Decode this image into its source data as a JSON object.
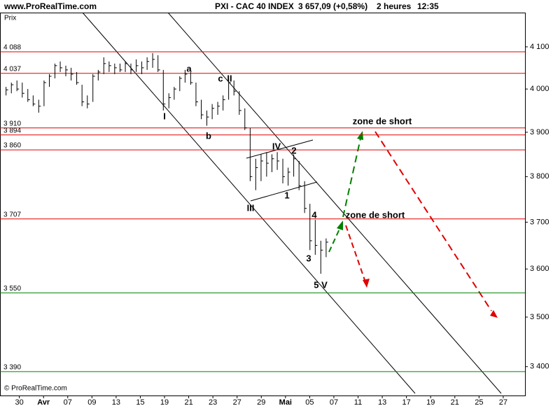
{
  "chart_data": {
    "type": "ohlc",
    "site": "www.ProRealTime.com",
    "title": "PXI - CAC 40 INDEX",
    "last_price": "3 657,09 (+0,58%)",
    "timeframe": "2 heures",
    "time": "12:35",
    "y_label": "Prix",
    "footer": "© ProRealTime.com",
    "log_y": true,
    "color": "#000000",
    "ylim": [
      3343,
      4183
    ],
    "yticks": [
      {
        "value": 4100,
        "label": "4 100"
      },
      {
        "value": 4000,
        "label": "4 000"
      },
      {
        "value": 3900,
        "label": "3 900"
      },
      {
        "value": 3800,
        "label": "3 800"
      },
      {
        "value": 3700,
        "label": "3 700"
      },
      {
        "value": 3600,
        "label": "3 600"
      },
      {
        "value": 3500,
        "label": "3 500"
      },
      {
        "value": 3400,
        "label": "3 400"
      }
    ],
    "xlim": [
      -0.8,
      20.9
    ],
    "xticks": [
      {
        "value": 0,
        "label": "30"
      },
      {
        "value": 1,
        "label": "Avr"
      },
      {
        "value": 2,
        "label": "07"
      },
      {
        "value": 3,
        "label": "09"
      },
      {
        "value": 4,
        "label": "13"
      },
      {
        "value": 5,
        "label": "15"
      },
      {
        "value": 6,
        "label": "19"
      },
      {
        "value": 7,
        "label": "21"
      },
      {
        "value": 8,
        "label": "23"
      },
      {
        "value": 9,
        "label": "27"
      },
      {
        "value": 10,
        "label": "29"
      },
      {
        "value": 11,
        "label": "Mai"
      },
      {
        "value": 12,
        "label": "05"
      },
      {
        "value": 13,
        "label": "07"
      },
      {
        "value": 14,
        "label": "11"
      },
      {
        "value": 15,
        "label": "13"
      },
      {
        "value": 16,
        "label": "17"
      },
      {
        "value": 17,
        "label": "19"
      },
      {
        "value": 18,
        "label": "21"
      },
      {
        "value": 19,
        "label": "25"
      },
      {
        "value": 20,
        "label": "27"
      }
    ],
    "levels": [
      {
        "value": 4088,
        "label": "4 088",
        "color": "#e00000"
      },
      {
        "value": 4037,
        "label": "4 037",
        "color": "#e00000"
      },
      {
        "value": 3910,
        "label": "3 910",
        "color": "#e00000"
      },
      {
        "value": 3894,
        "label": "3 894",
        "color": "#e00000"
      },
      {
        "value": 3860,
        "label": "3 860",
        "color": "#e00000"
      },
      {
        "value": 3707,
        "label": "3 707",
        "color": "#e00000"
      },
      {
        "value": 3550,
        "label": "3 550",
        "color": "#008000"
      },
      {
        "value": 3390,
        "label": "3 390",
        "color": "#008000"
      }
    ],
    "x": [
      -0.55,
      -0.33,
      -0.1,
      0.12,
      0.35,
      0.57,
      0.8,
      1.02,
      1.24,
      1.47,
      1.69,
      1.92,
      2.14,
      2.37,
      2.59,
      2.81,
      3.04,
      3.26,
      3.49,
      3.71,
      3.94,
      4.16,
      4.38,
      4.61,
      4.83,
      5.06,
      5.28,
      5.51,
      5.73,
      5.95,
      6.18,
      6.4,
      6.63,
      6.85,
      7.08,
      7.3,
      7.52,
      7.75,
      7.97,
      8.2,
      8.42,
      8.65,
      8.87,
      9.09,
      9.32,
      9.54,
      9.77,
      9.99,
      10.22,
      10.44,
      10.66,
      10.89,
      11.11,
      11.34,
      11.56,
      11.79,
      12.01,
      12.23,
      12.46,
      12.68
    ],
    "high": [
      4005,
      4015,
      4020,
      4015,
      4000,
      3985,
      3975,
      4020,
      4035,
      4060,
      4065,
      4055,
      4050,
      4040,
      4010,
      3985,
      4035,
      4045,
      4075,
      4065,
      4060,
      4060,
      4065,
      4060,
      4070,
      4065,
      4075,
      4085,
      4080,
      4045,
      3990,
      4005,
      4030,
      4045,
      4040,
      4015,
      3975,
      3950,
      3965,
      3970,
      3985,
      4025,
      4020,
      3995,
      3955,
      3910,
      3840,
      3850,
      3855,
      3850,
      3855,
      3840,
      3820,
      3850,
      3835,
      3790,
      3740,
      3705,
      3660,
      3665
    ],
    "low": [
      3985,
      3990,
      3995,
      3980,
      3970,
      3960,
      3945,
      3960,
      4005,
      4025,
      4040,
      4030,
      4020,
      4010,
      3960,
      3955,
      3970,
      4020,
      4035,
      4040,
      4035,
      4040,
      4040,
      4035,
      4040,
      4035,
      4045,
      4050,
      4040,
      3950,
      3955,
      3975,
      3995,
      4015,
      4010,
      3960,
      3930,
      3915,
      3930,
      3940,
      3950,
      3975,
      3985,
      3940,
      3905,
      3790,
      3770,
      3790,
      3800,
      3810,
      3815,
      3785,
      3780,
      3800,
      3770,
      3720,
      3640,
      3630,
      3590,
      3625
    ],
    "close": [
      3998,
      4010,
      4000,
      3990,
      3975,
      3965,
      3960,
      4015,
      4030,
      4055,
      4050,
      4045,
      4035,
      4015,
      3970,
      3965,
      4030,
      4040,
      4060,
      4055,
      4050,
      4045,
      4060,
      4045,
      4055,
      4050,
      4065,
      4070,
      4045,
      3965,
      3980,
      4000,
      4025,
      4035,
      4015,
      3970,
      3940,
      3935,
      3955,
      3960,
      3975,
      4015,
      3995,
      3950,
      3910,
      3800,
      3820,
      3835,
      3830,
      3840,
      3835,
      3800,
      3810,
      3840,
      3780,
      3730,
      3660,
      3650,
      3640,
      3657
    ],
    "annotations": [
      "a",
      "b",
      "c",
      "II",
      "I",
      "III",
      "IV",
      "2",
      "1",
      "4",
      "3",
      "5 V",
      "zone de short",
      "zone de short"
    ]
  }
}
